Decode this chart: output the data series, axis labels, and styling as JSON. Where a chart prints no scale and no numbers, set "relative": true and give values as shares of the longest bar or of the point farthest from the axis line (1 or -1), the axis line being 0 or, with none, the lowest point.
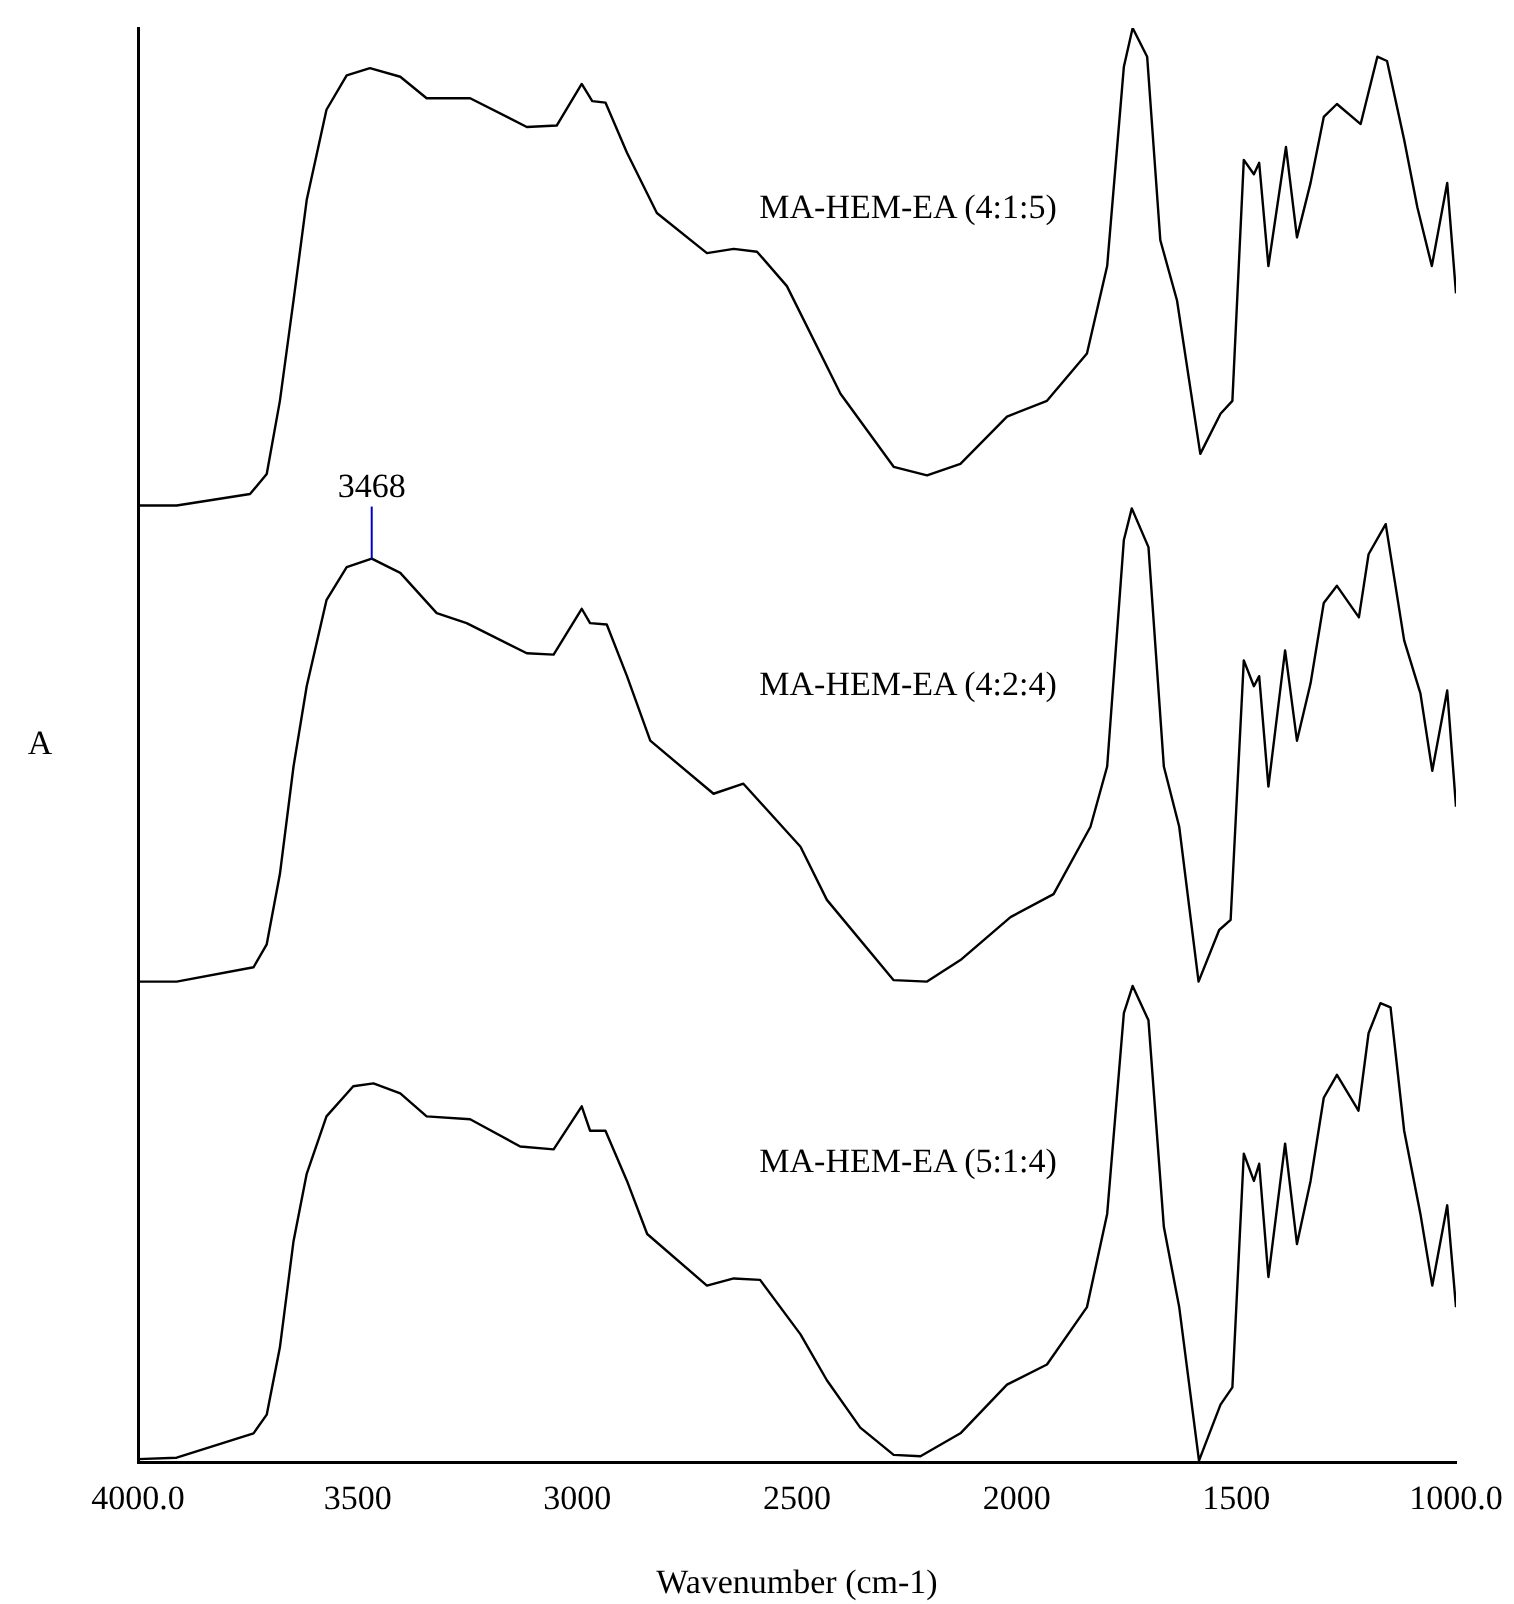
{
  "chart_data": {
    "type": "line",
    "relative": true,
    "xlabel": "Wavenumber (cm-1)",
    "ylabel": "A",
    "xlim": [
      4000,
      1000
    ],
    "xticks": [
      {
        "value": 4000,
        "label": "4000.0"
      },
      3500,
      3000,
      2500,
      2000,
      1500,
      {
        "value": 1000,
        "label": "1000.0"
      }
    ],
    "grid": false,
    "legend": false,
    "marker": "none",
    "line_style": "solid",
    "annotations": [
      {
        "text": "3468",
        "x": 3468,
        "y": 0.63
      }
    ],
    "series": [
      {
        "name": "MA-HEM-EA (4:1:5)",
        "color": "#000000",
        "x": [
          4000,
          3912,
          3745,
          3707,
          3677,
          3646,
          3616,
          3571,
          3525,
          3472,
          3403,
          3343,
          3244,
          3115,
          3047,
          2990,
          2966,
          2936,
          2887,
          2819,
          2705,
          2644,
          2591,
          2523,
          2401,
          2280,
          2204,
          2128,
          2022,
          1931,
          1840,
          1794,
          1756,
          1736,
          1703,
          1673,
          1635,
          1582,
          1536,
          1509,
          1483,
          1460,
          1448,
          1427,
          1387,
          1362,
          1331,
          1301,
          1271,
          1217,
          1179,
          1157,
          1118,
          1088,
          1055,
          1020,
          1000
        ],
        "values": [
          0.667,
          0.667,
          0.675,
          0.689,
          0.74,
          0.81,
          0.88,
          0.943,
          0.967,
          0.972,
          0.966,
          0.951,
          0.951,
          0.931,
          0.932,
          0.961,
          0.949,
          0.948,
          0.913,
          0.871,
          0.843,
          0.846,
          0.844,
          0.82,
          0.745,
          0.694,
          0.688,
          0.696,
          0.729,
          0.74,
          0.773,
          0.834,
          0.973,
          1,
          0.98,
          0.852,
          0.81,
          0.703,
          0.731,
          0.74,
          0.908,
          0.898,
          0.906,
          0.834,
          0.917,
          0.854,
          0.892,
          0.938,
          0.947,
          0.933,
          0.98,
          0.977,
          0.922,
          0.875,
          0.834,
          0.892,
          0.815
        ]
      },
      {
        "name": "MA-HEM-EA (4:2:4)",
        "color": "#000000",
        "x": [
          4000,
          3912,
          3737,
          3707,
          3677,
          3646,
          3616,
          3571,
          3525,
          3468,
          3403,
          3320,
          3252,
          3115,
          3054,
          2990,
          2971,
          2933,
          2887,
          2834,
          2690,
          2622,
          2492,
          2432,
          2280,
          2204,
          2128,
          2014,
          1916,
          1832,
          1794,
          1756,
          1738,
          1700,
          1665,
          1630,
          1586,
          1539,
          1513,
          1483,
          1460,
          1448,
          1427,
          1389,
          1362,
          1331,
          1301,
          1271,
          1221,
          1199,
          1160,
          1118,
          1081,
          1054,
          1020,
          1000
        ],
        "values": [
          0.335,
          0.335,
          0.345,
          0.361,
          0.41,
          0.485,
          0.541,
          0.601,
          0.624,
          0.63,
          0.62,
          0.592,
          0.585,
          0.564,
          0.563,
          0.595,
          0.585,
          0.584,
          0.548,
          0.503,
          0.466,
          0.473,
          0.429,
          0.392,
          0.336,
          0.335,
          0.35,
          0.38,
          0.396,
          0.443,
          0.485,
          0.643,
          0.665,
          0.638,
          0.485,
          0.443,
          0.335,
          0.371,
          0.378,
          0.559,
          0.541,
          0.548,
          0.471,
          0.566,
          0.503,
          0.543,
          0.599,
          0.611,
          0.589,
          0.633,
          0.654,
          0.573,
          0.536,
          0.482,
          0.538,
          0.457
        ]
      },
      {
        "name": "MA-HEM-EA (5:1:4)",
        "color": "#000000",
        "x": [
          4000,
          3912,
          3737,
          3707,
          3677,
          3646,
          3616,
          3571,
          3510,
          3464,
          3403,
          3343,
          3244,
          3130,
          3054,
          2990,
          2971,
          2936,
          2887,
          2841,
          2705,
          2644,
          2584,
          2492,
          2432,
          2356,
          2280,
          2219,
          2128,
          2022,
          1931,
          1840,
          1794,
          1756,
          1736,
          1700,
          1665,
          1630,
          1585,
          1536,
          1509,
          1483,
          1460,
          1448,
          1427,
          1389,
          1362,
          1331,
          1301,
          1271,
          1222,
          1199,
          1172,
          1149,
          1118,
          1081,
          1054,
          1020,
          1000
        ],
        "values": [
          0.002,
          0.003,
          0.02,
          0.033,
          0.08,
          0.154,
          0.201,
          0.241,
          0.262,
          0.264,
          0.257,
          0.241,
          0.239,
          0.22,
          0.218,
          0.248,
          0.231,
          0.231,
          0.196,
          0.159,
          0.123,
          0.128,
          0.127,
          0.089,
          0.057,
          0.024,
          0.005,
          0.004,
          0.02,
          0.054,
          0.068,
          0.108,
          0.173,
          0.313,
          0.332,
          0.308,
          0.164,
          0.108,
          0.001,
          0.04,
          0.052,
          0.215,
          0.196,
          0.208,
          0.129,
          0.222,
          0.152,
          0.196,
          0.254,
          0.27,
          0.245,
          0.299,
          0.32,
          0.317,
          0.231,
          0.173,
          0.123,
          0.179,
          0.108
        ]
      }
    ]
  }
}
